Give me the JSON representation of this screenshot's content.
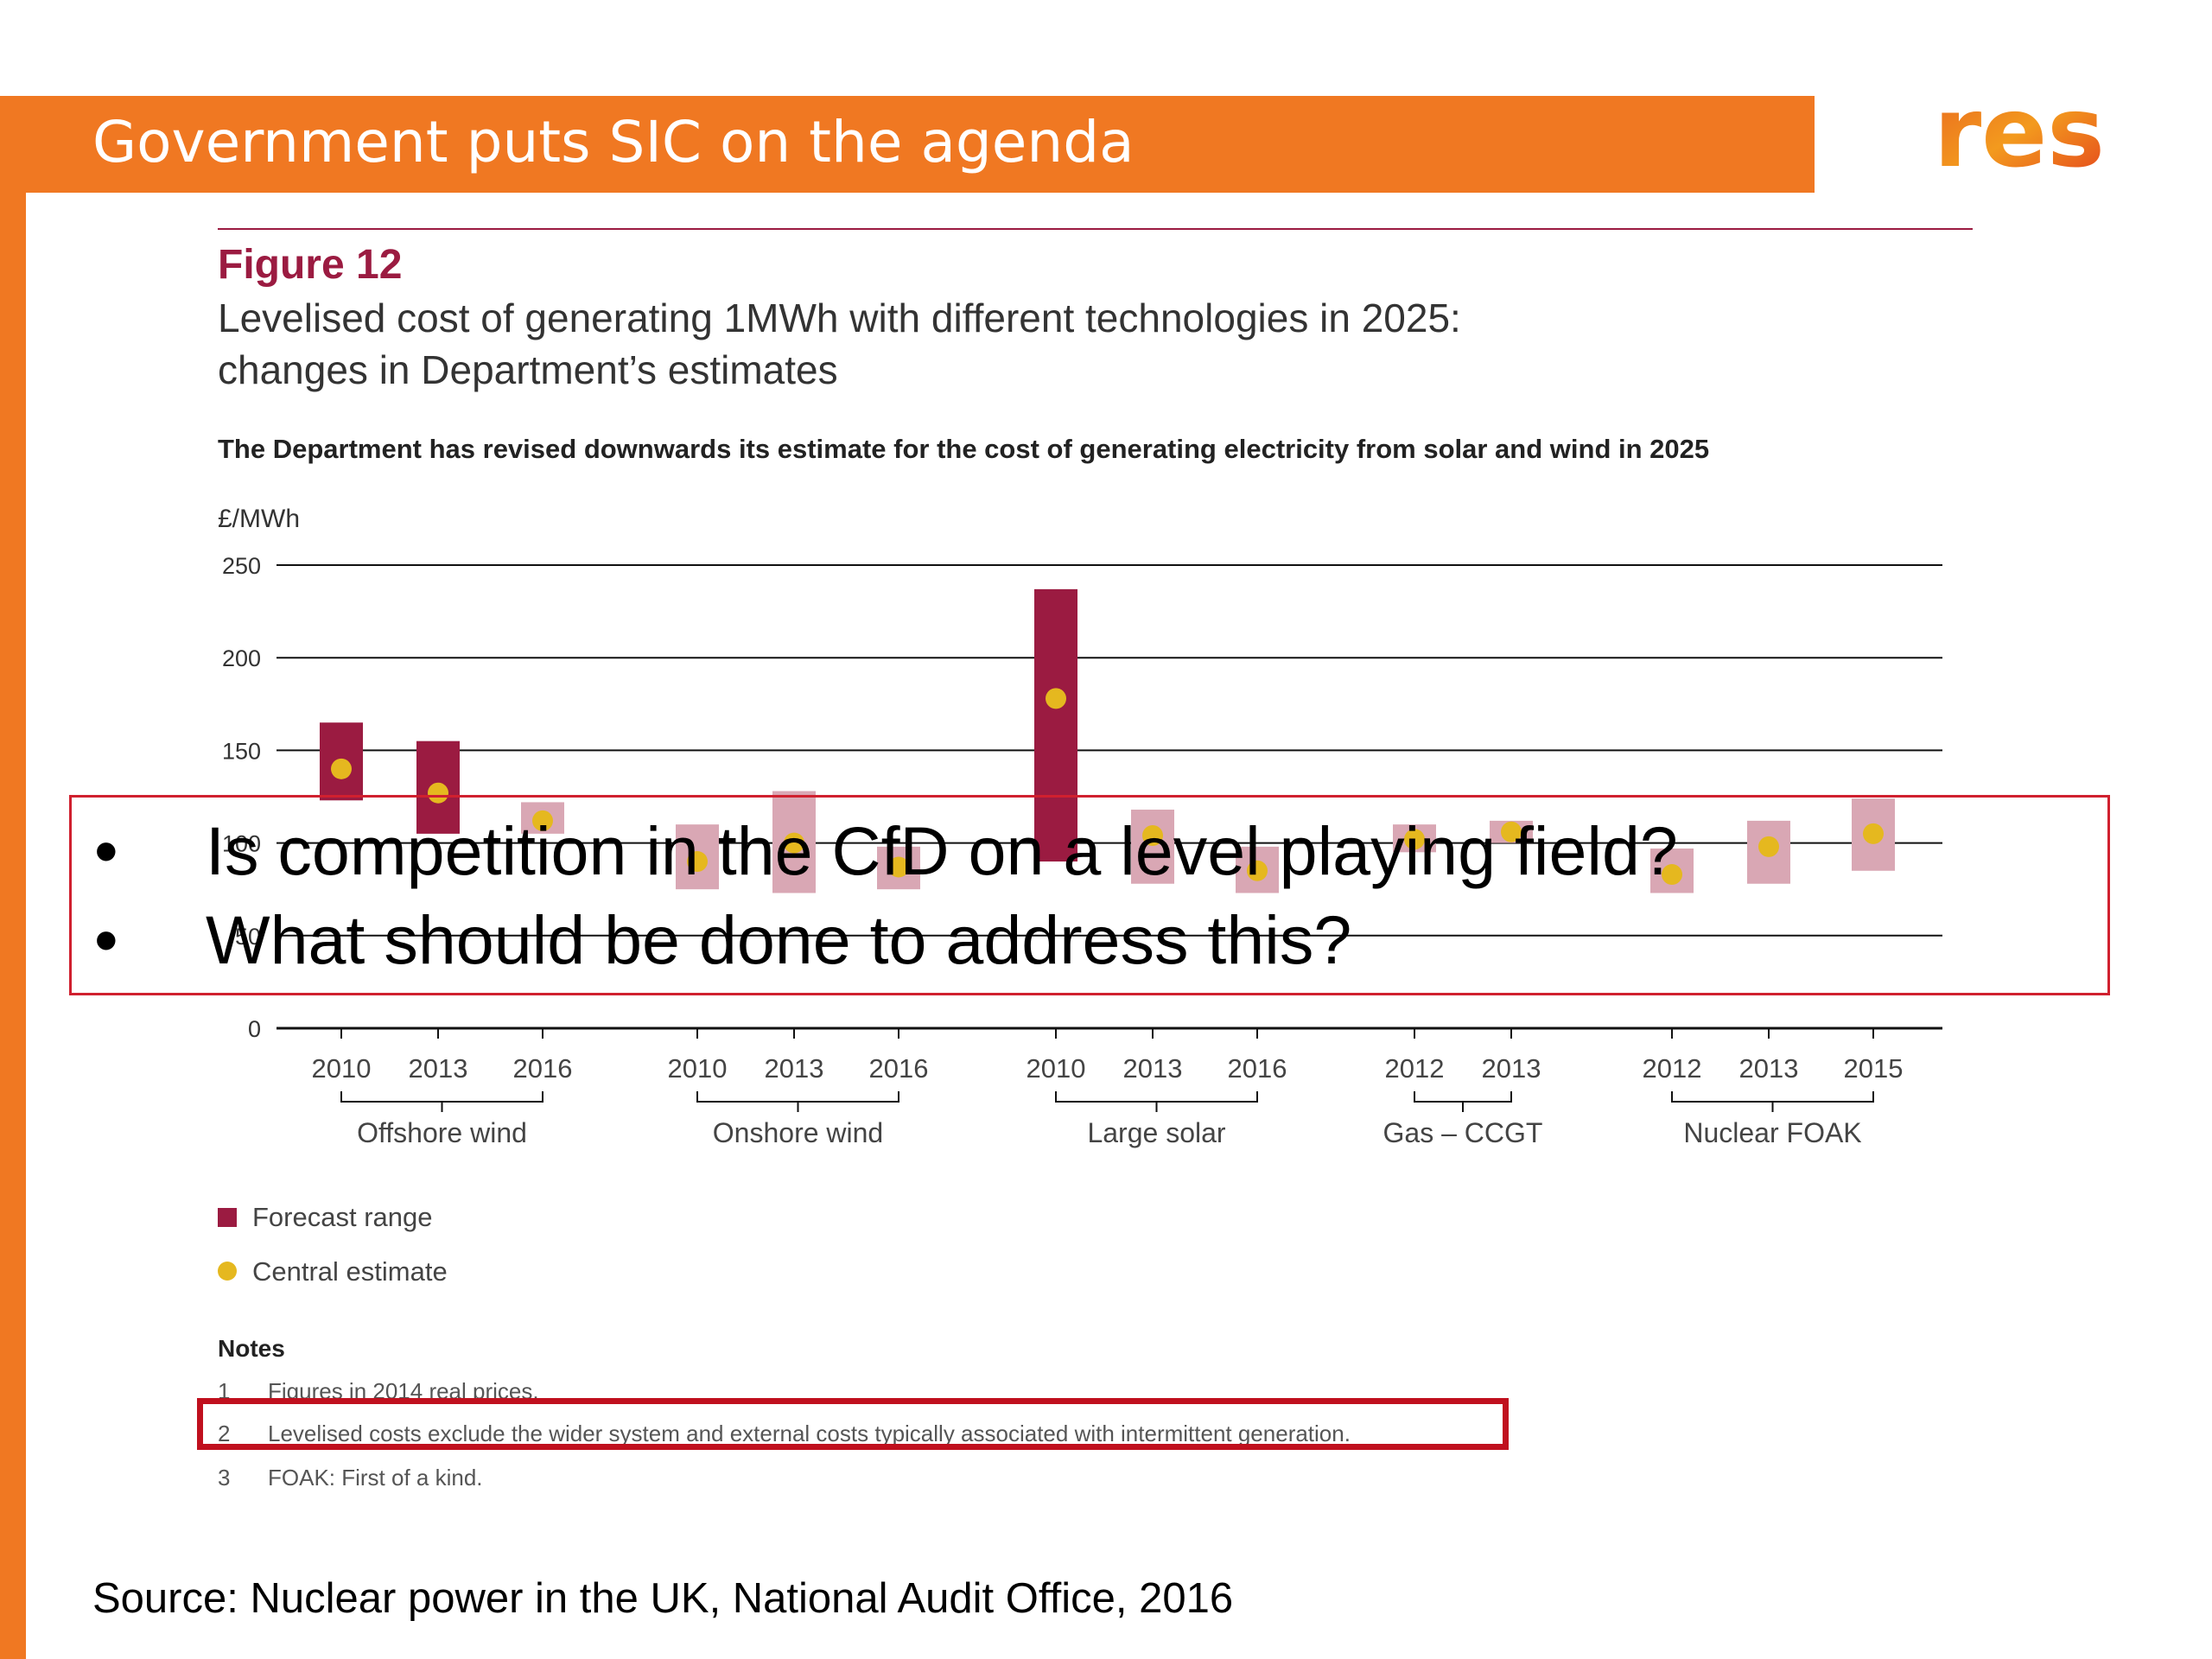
{
  "slide": {
    "title": "Government puts SIC on the agenda",
    "logo_text": "res",
    "source": "Source: Nuclear power in the UK, National Audit Office, 2016",
    "questions": [
      "Is competition in the CfD on a level playing field?",
      "What should be done to address this?"
    ],
    "bullet": "•"
  },
  "figure": {
    "label": "Figure 12",
    "title_line1": "Levelised cost of generating 1MWh with different technologies in 2025:",
    "title_line2": "changes in Department’s estimates",
    "subtitle": "The Department has revised downwards its estimate for the cost of generating electricity from solar and wind in 2025",
    "unit": "£/MWh",
    "legend": {
      "forecast_range": "Forecast range",
      "central_estimate": "Central estimate"
    },
    "notes_title": "Notes",
    "notes": [
      {
        "num": "1",
        "text": "Figures in 2014 real prices."
      },
      {
        "num": "2",
        "text": "Levelised costs exclude the wider system and external costs typically associated with intermittent generation."
      },
      {
        "num": "3",
        "text": "FOAK: First of a kind."
      }
    ]
  },
  "colors": {
    "orange": "#F07822",
    "maroon": "#9B1B41",
    "pink": "#D9A7B4",
    "gold": "#E5B81F",
    "highlight_red": "#C0101E"
  },
  "chart_data": {
    "type": "bar",
    "ylabel": "£/MWh",
    "ylim": [
      0,
      250
    ],
    "yticks": [
      0,
      50,
      100,
      150,
      200,
      250
    ],
    "grid": true,
    "legend_position": "bottom-left",
    "groups": [
      {
        "name": "Offshore wind",
        "years": [
          "2010",
          "2013",
          "2016"
        ]
      },
      {
        "name": "Onshore wind",
        "years": [
          "2010",
          "2013",
          "2016"
        ]
      },
      {
        "name": "Large solar",
        "years": [
          "2010",
          "2013",
          "2016"
        ]
      },
      {
        "name": "Gas – CCGT",
        "years": [
          "2012",
          "2013"
        ]
      },
      {
        "name": "Nuclear FOAK",
        "years": [
          "2012",
          "2013",
          "2015"
        ]
      }
    ],
    "series": [
      {
        "name": "Forecast range",
        "ranges": [
          [
            123,
            165
          ],
          [
            105,
            155
          ],
          [
            105,
            122
          ],
          [
            75,
            110
          ],
          [
            73,
            128
          ],
          [
            75,
            98
          ],
          [
            90,
            237
          ],
          [
            78,
            118
          ],
          [
            73,
            98
          ],
          [
            95,
            110
          ],
          [
            100,
            112
          ],
          [
            73,
            97
          ],
          [
            78,
            112
          ],
          [
            85,
            124
          ]
        ]
      },
      {
        "name": "Central estimate",
        "values": [
          140,
          127,
          112,
          90,
          100,
          87,
          178,
          104,
          85,
          102,
          106,
          83,
          98,
          105
        ]
      }
    ]
  }
}
